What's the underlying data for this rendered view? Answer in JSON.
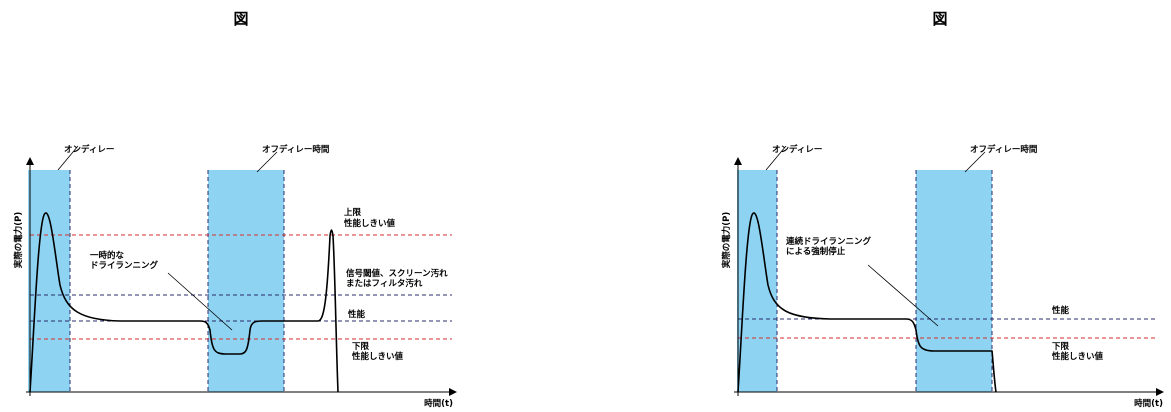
{
  "panels": [
    {
      "figure_label": "図",
      "y_axis_label": "実際の電力(P)",
      "x_axis_label": "時間(t)",
      "on_delay": "オンディレー",
      "off_delay": "オフディレー時間",
      "upper_limit": [
        "上限",
        "性能しきい値"
      ],
      "annotation": [
        "一時的な",
        "ドライランニング"
      ],
      "signal_note": [
        "信号閾値、スクリーン汚れ",
        "またはフィルタ汚れ"
      ],
      "performance": "性能",
      "lower_limit": [
        "下限",
        "性能しきい値"
      ]
    },
    {
      "figure_label": "図",
      "y_axis_label": "実際の電力(P)",
      "x_axis_label": "時間(t)",
      "on_delay": "オンディレー",
      "off_delay": "オフディレー時間",
      "annotation": [
        "連続ドライランニング",
        "による強制停止"
      ],
      "performance": "性能",
      "lower_limit": [
        "下限",
        "性能しきい値"
      ]
    }
  ],
  "colors": {
    "delay_band": "#8fd3f2",
    "threshold_red": "#d62c2c",
    "reference_dash": "#2b2b6b",
    "curve": "#000000"
  }
}
